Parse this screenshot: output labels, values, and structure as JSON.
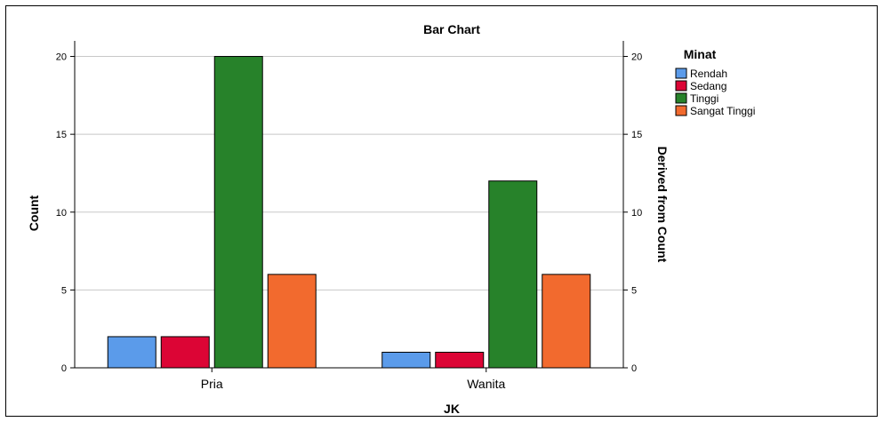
{
  "chart_data": {
    "type": "bar",
    "title": "Bar Chart",
    "xlabel": "JK",
    "ylabel": "Count",
    "y2label": "Derived from Count",
    "categories": [
      "Pria",
      "Wanita"
    ],
    "ylim": [
      0,
      21
    ],
    "yticks": [
      0,
      5,
      10,
      15,
      20
    ],
    "grid": true,
    "legend": {
      "title": "Minat",
      "placement": "right"
    },
    "series": [
      {
        "name": "Rendah",
        "color": "#5b9bea",
        "values": [
          2,
          1
        ]
      },
      {
        "name": "Sedang",
        "color": "#dc0535",
        "values": [
          2,
          1
        ]
      },
      {
        "name": "Tinggi",
        "color": "#27822a",
        "values": [
          20,
          12
        ]
      },
      {
        "name": "Sangat Tinggi",
        "color": "#f26a2e",
        "values": [
          6,
          6
        ]
      }
    ]
  }
}
